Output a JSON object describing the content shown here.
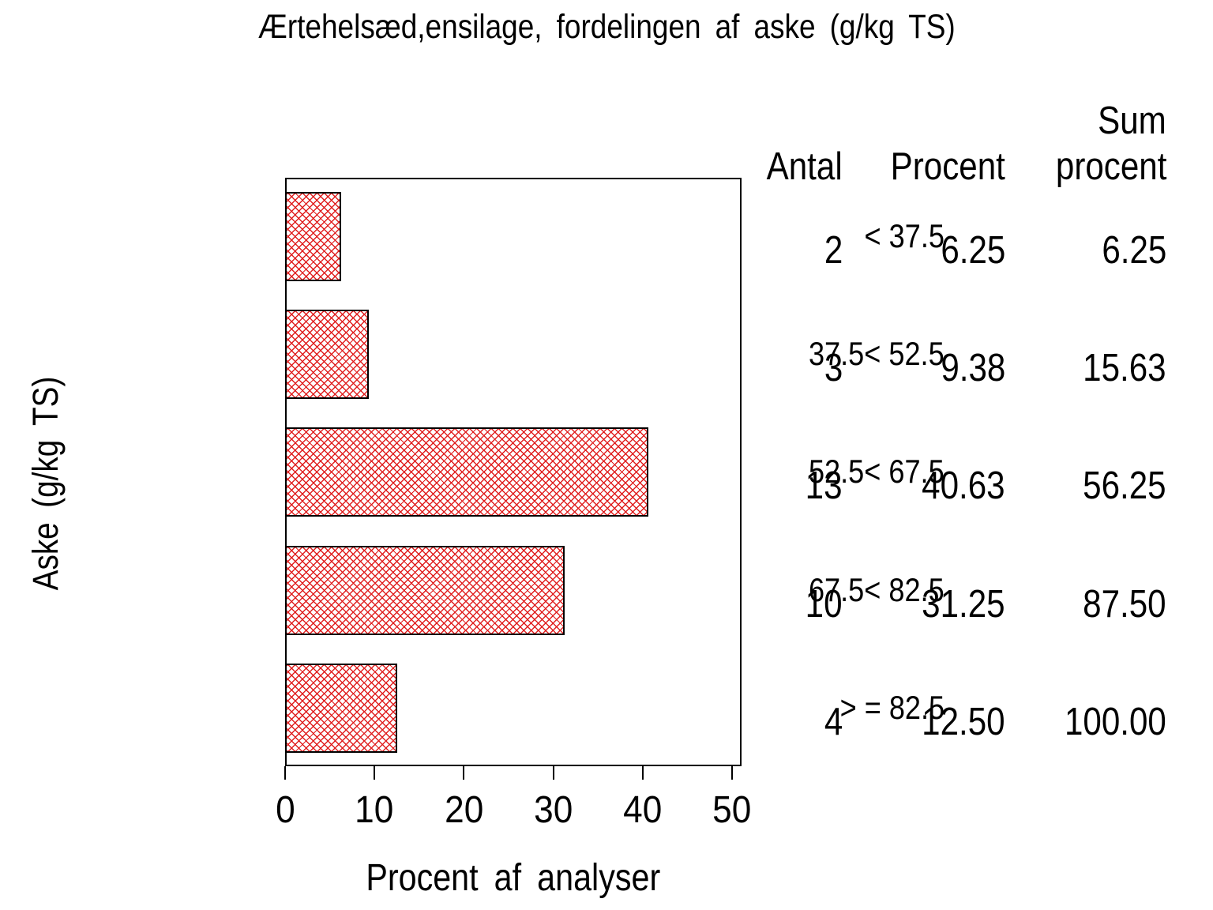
{
  "chart_data": {
    "type": "bar",
    "orientation": "horizontal",
    "title": "Ærtehelsæd,ensilage, fordelingen af aske (g/kg TS)",
    "categories": [
      "< 37.5",
      "37.5< 52.5",
      "52.5< 67.5",
      "67.5< 82.5",
      "> = 82.5"
    ],
    "values": [
      6.25,
      9.38,
      40.63,
      31.25,
      12.5
    ],
    "counts": [
      2,
      3,
      13,
      10,
      4
    ],
    "cum_percent": [
      6.25,
      15.63,
      56.25,
      87.5,
      100.0
    ],
    "xlabel": "Procent af analyser",
    "ylabel": "Aske (g/kg TS)",
    "xlim": [
      0,
      51
    ],
    "xticks": [
      0,
      10,
      20,
      30,
      40,
      50
    ],
    "grid": false,
    "legend": "none",
    "bar_style": {
      "fill": "red-diagonal-crosshatch",
      "hatch_color": "#e02020",
      "border_color": "#000000",
      "background": "#ffffff"
    },
    "table": {
      "header": {
        "antal": "Antal",
        "procent": "Procent",
        "sum_top": "Sum",
        "sum_bottom": "procent"
      },
      "rows": [
        {
          "antal": "2",
          "procent": "6.25",
          "sum": "6.25"
        },
        {
          "antal": "3",
          "procent": "9.38",
          "sum": "15.63"
        },
        {
          "antal": "13",
          "procent": "40.63",
          "sum": "56.25"
        },
        {
          "antal": "10",
          "procent": "31.25",
          "sum": "87.50"
        },
        {
          "antal": "4",
          "procent": "12.50",
          "sum": "100.00"
        }
      ]
    }
  }
}
